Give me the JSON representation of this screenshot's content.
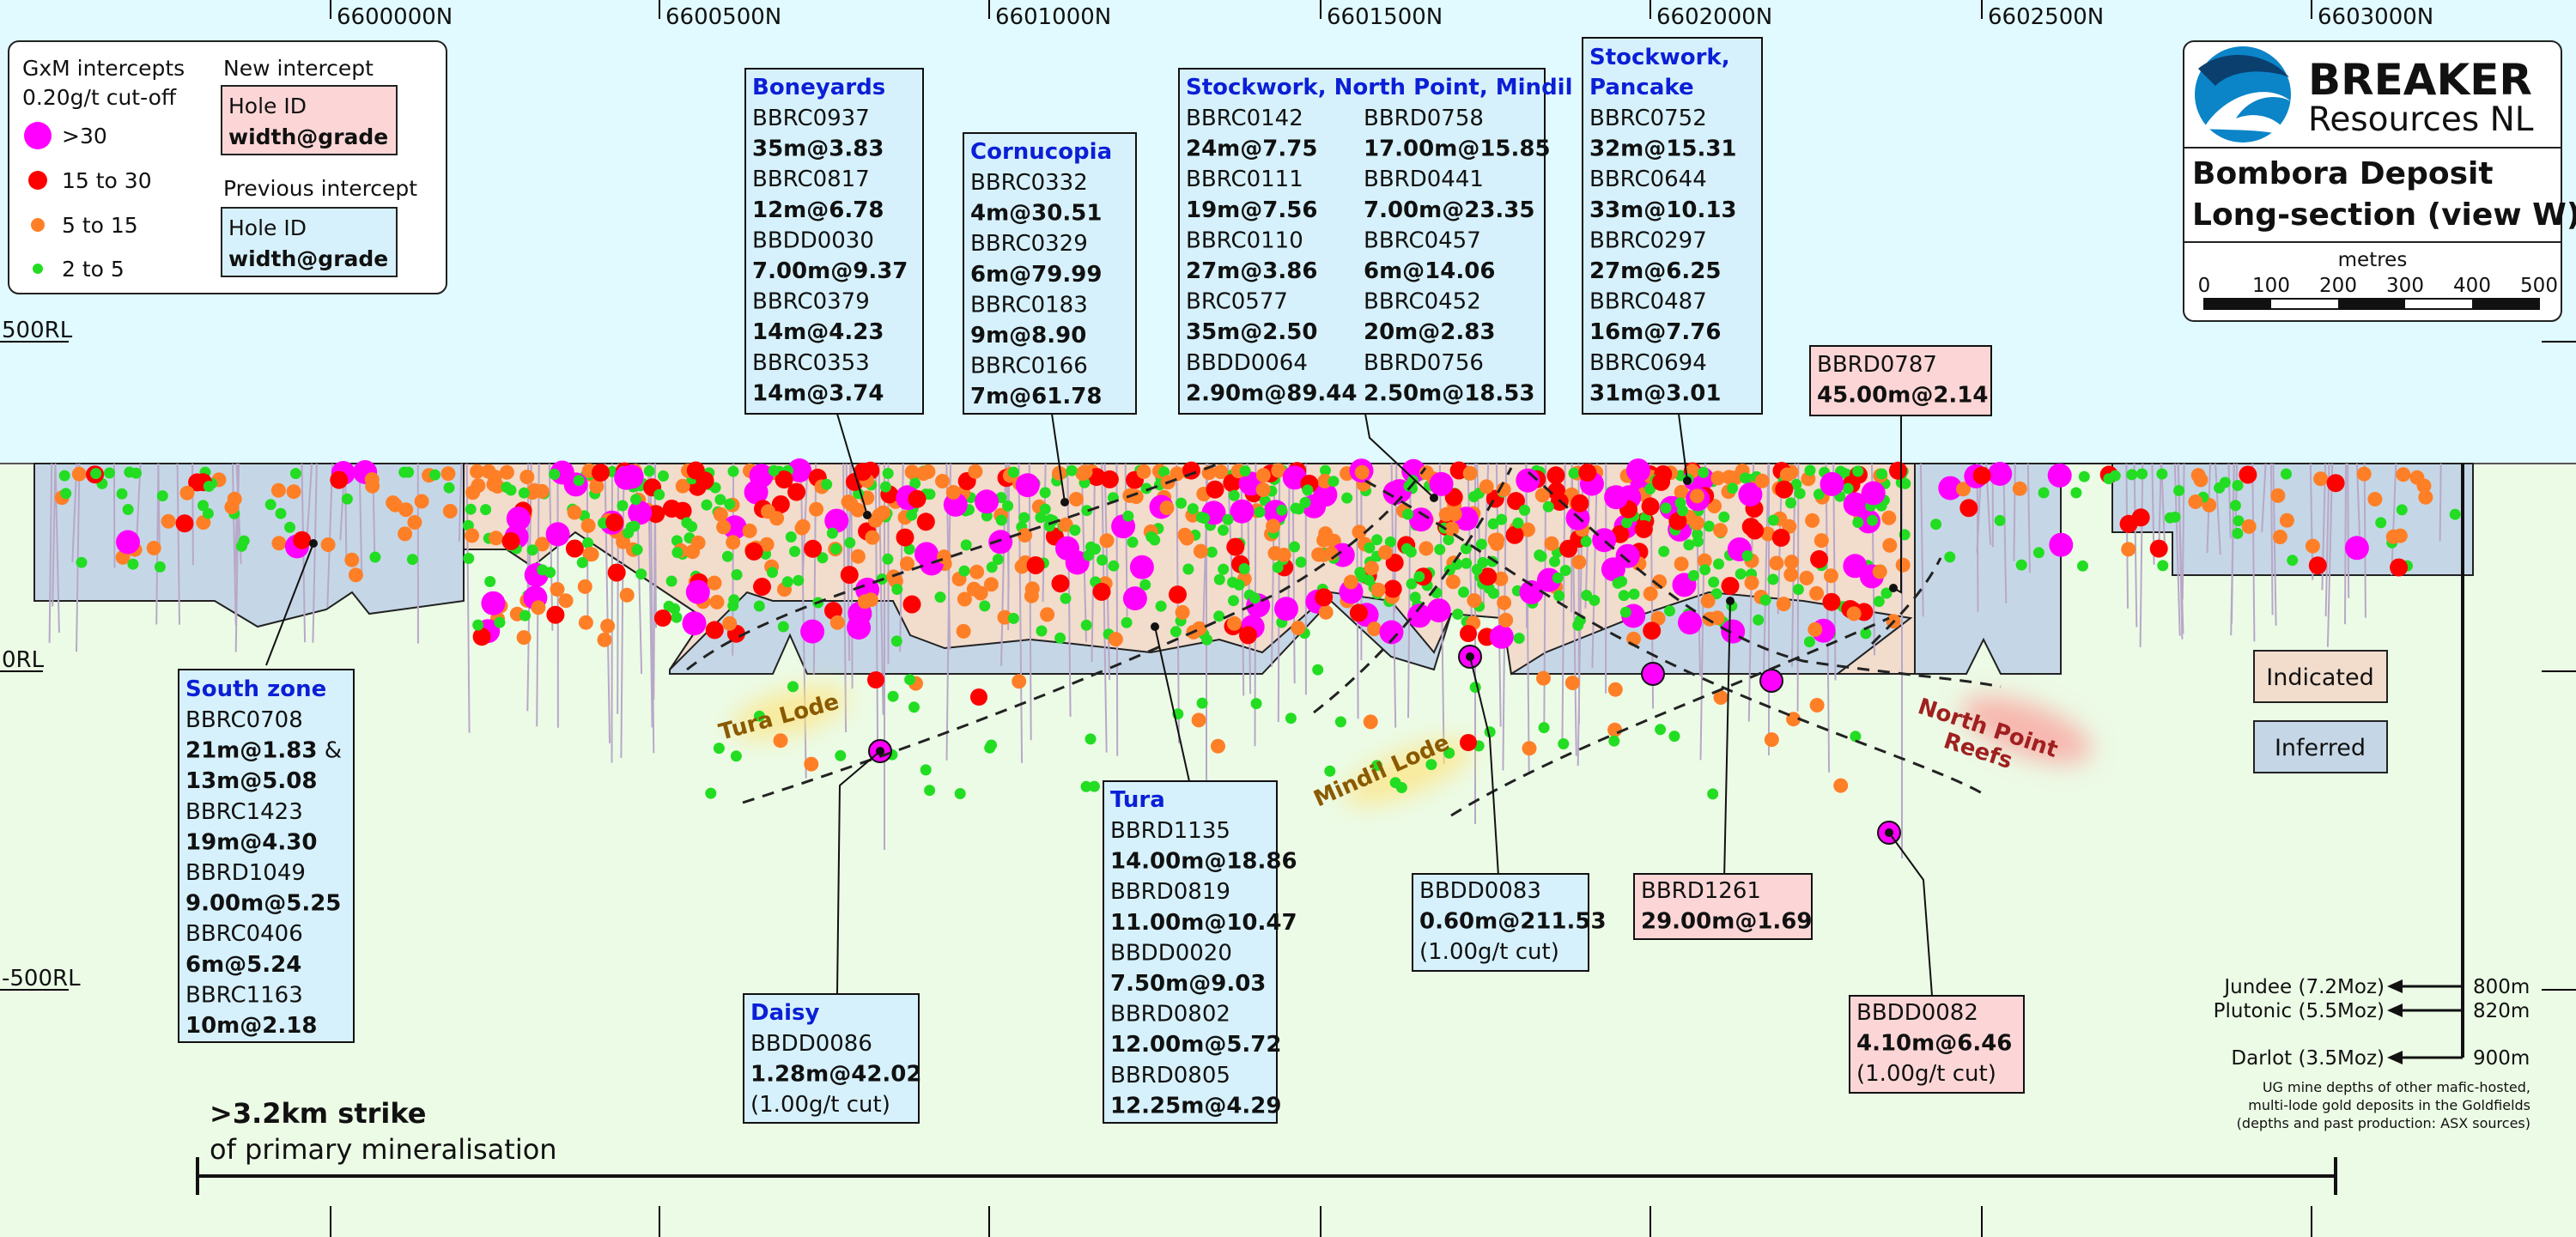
{
  "northings": [
    "6600000N",
    "6600500N",
    "6601000N",
    "6601500N",
    "6602000N",
    "6602500N",
    "6603000N"
  ],
  "rl_labels": [
    "500RL",
    "0RL",
    "-500RL"
  ],
  "legend": {
    "title1": "GxM intercepts",
    "title2": "0.20g/t cut-off",
    "bins": [
      {
        "label": ">30",
        "color": "#ff00ff"
      },
      {
        "label": "15 to 30",
        "color": "#ff0000"
      },
      {
        "label": "5 to 15",
        "color": "#ff7f27"
      },
      {
        "label": "2 to 5",
        "color": "#22dd22"
      }
    ],
    "new_title": "New intercept",
    "new_line1": "Hole ID",
    "new_line2": "width@grade",
    "prev_title": "Previous intercept",
    "prev_line1": "Hole ID",
    "prev_line2": "width@grade"
  },
  "logo": {
    "line1": "BREAKER",
    "line2": "Resources NL",
    "title1": "Bombora Deposit",
    "title2": "Long-section (view W)",
    "scale_unit": "metres",
    "scale_ticks": [
      "0",
      "100",
      "200",
      "300",
      "400",
      "500"
    ]
  },
  "categories": {
    "indicated": "Indicated",
    "inferred": "Inferred"
  },
  "lodes": {
    "tura": "Tura Lode",
    "mindil": "Mindil Lode",
    "npr1": "North Point",
    "npr2": "Reefs"
  },
  "callouts": {
    "boneyards": {
      "title": "Boneyards",
      "rows": [
        {
          "t": "BBRC0937",
          "b": false
        },
        {
          "t": "35m@3.83",
          "b": true
        },
        {
          "t": "BBRC0817",
          "b": false
        },
        {
          "t": "12m@6.78",
          "b": true
        },
        {
          "t": "BBDD0030",
          "b": false
        },
        {
          "t": "7.00m@9.37",
          "b": true
        },
        {
          "t": "BBRC0379",
          "b": false
        },
        {
          "t": "14m@4.23",
          "b": true
        },
        {
          "t": "BBRC0353",
          "b": false
        },
        {
          "t": "14m@3.74",
          "b": true
        }
      ]
    },
    "cornucopia": {
      "title": "Cornucopia",
      "rows": [
        {
          "t": "BBRC0332",
          "b": false
        },
        {
          "t": "4m@30.51",
          "b": true
        },
        {
          "t": "BBRC0329",
          "b": false
        },
        {
          "t": "6m@79.99",
          "b": true
        },
        {
          "t": "BBRC0183",
          "b": false
        },
        {
          "t": "9m@8.90",
          "b": true
        },
        {
          "t": "BBRC0166",
          "b": false
        },
        {
          "t": "7m@61.78",
          "b": true
        }
      ]
    },
    "stockwork_np": {
      "title": "Stockwork, North Point, Mindil",
      "col1": [
        {
          "t": "BBRC0142",
          "b": false
        },
        {
          "t": "24m@7.75",
          "b": true
        },
        {
          "t": "BBRC0111",
          "b": false
        },
        {
          "t": "19m@7.56",
          "b": true
        },
        {
          "t": "BBRC0110",
          "b": false
        },
        {
          "t": "27m@3.86",
          "b": true
        },
        {
          "t": "BRC0577",
          "b": false
        },
        {
          "t": "35m@2.50",
          "b": true
        },
        {
          "t": "BBDD0064",
          "b": false
        },
        {
          "t": "2.90m@89.44",
          "b": true
        }
      ],
      "col2": [
        {
          "t": "BBRD0758",
          "b": false
        },
        {
          "t": "17.00m@15.85",
          "b": true
        },
        {
          "t": "BBRD0441",
          "b": false
        },
        {
          "t": "7.00m@23.35",
          "b": true
        },
        {
          "t": "BBRC0457",
          "b": false
        },
        {
          "t": "6m@14.06",
          "b": true
        },
        {
          "t": "BBRC0452",
          "b": false
        },
        {
          "t": "20m@2.83",
          "b": true
        },
        {
          "t": "BBRD0756",
          "b": false
        },
        {
          "t": "2.50m@18.53",
          "b": true
        }
      ]
    },
    "stockwork_pancake": {
      "title1": "Stockwork,",
      "title2": "Pancake",
      "rows": [
        {
          "t": "BBRC0752",
          "b": false
        },
        {
          "t": "32m@15.31",
          "b": true
        },
        {
          "t": "BBRC0644",
          "b": false
        },
        {
          "t": "33m@10.13",
          "b": true
        },
        {
          "t": "BBRC0297",
          "b": false
        },
        {
          "t": "27m@6.25",
          "b": true
        },
        {
          "t": "BBRC0487",
          "b": false
        },
        {
          "t": "16m@7.76",
          "b": true
        },
        {
          "t": "BBRC0694",
          "b": false
        },
        {
          "t": "31m@3.01",
          "b": true
        }
      ]
    },
    "bbrd0787": {
      "rows": [
        {
          "t": "BBRD0787",
          "b": false
        },
        {
          "t": "45.00m@2.14",
          "b": true
        }
      ]
    },
    "south_zone": {
      "title": "South zone",
      "rows": [
        {
          "t": "BBRC0708",
          "b": false
        },
        {
          "t": "21m@1.83",
          "b": true,
          "suffix": " &"
        },
        {
          "t": "13m@5.08",
          "b": true
        },
        {
          "t": "BBRC1423",
          "b": false
        },
        {
          "t": "19m@4.30",
          "b": true
        },
        {
          "t": "BBRD1049",
          "b": false
        },
        {
          "t": "9.00m@5.25",
          "b": true
        },
        {
          "t": "BBRC0406",
          "b": false
        },
        {
          "t": "6m@5.24",
          "b": true
        },
        {
          "t": "BBRC1163",
          "b": false
        },
        {
          "t": "10m@2.18",
          "b": true
        }
      ]
    },
    "tura": {
      "title": "Tura",
      "rows": [
        {
          "t": "BBRD1135",
          "b": false
        },
        {
          "t": "14.00m@18.86",
          "b": true
        },
        {
          "t": "BBRD0819",
          "b": false
        },
        {
          "t": "11.00m@10.47",
          "b": true
        },
        {
          "t": "BBDD0020",
          "b": false
        },
        {
          "t": "7.50m@9.03",
          "b": true
        },
        {
          "t": "BBRD0802",
          "b": false
        },
        {
          "t": "12.00m@5.72",
          "b": true
        },
        {
          "t": "BBRD0805",
          "b": false
        },
        {
          "t": "12.25m@4.29",
          "b": true
        }
      ]
    },
    "daisy": {
      "title": "Daisy",
      "rows": [
        {
          "t": "BBDD0086",
          "b": false
        },
        {
          "t": "1.28m@42.02",
          "b": true
        },
        {
          "t": "(1.00g/t cut)",
          "b": false
        }
      ]
    },
    "bbdd0083": {
      "rows": [
        {
          "t": "BBDD0083",
          "b": false
        },
        {
          "t": "0.60m@211.53",
          "b": true
        },
        {
          "t": "(1.00g/t cut)",
          "b": false
        }
      ]
    },
    "bbrd1261": {
      "rows": [
        {
          "t": "BBRD1261",
          "b": false
        },
        {
          "t": "29.00m@1.69",
          "b": true
        }
      ]
    },
    "bbdd0082": {
      "rows": [
        {
          "t": "BBDD0082",
          "b": false
        },
        {
          "t": "4.10m@6.46",
          "b": true
        },
        {
          "t": "(1.00g/t cut)",
          "b": false
        }
      ]
    }
  },
  "depths": {
    "items": [
      {
        "name": "Jundee (7.2Moz)",
        "depth": "800m"
      },
      {
        "name": "Plutonic (5.5Moz)",
        "depth": "820m"
      },
      {
        "name": "Darlot (3.5Moz)",
        "depth": "900m"
      }
    ],
    "note1": "UG mine depths of other mafic-hosted,",
    "note2": "multi-lode gold deposits in the Goldfields",
    "note3": "(depths and past production: ASX sources)"
  },
  "strike": {
    "bold": ">3.2km strike",
    "normal": "of primary mineralisation"
  },
  "colors": {
    "sky": "#e0faff",
    "ground": "#ecfbe6",
    "inferred": "#c5d7e6",
    "indicated": "#f2dccc",
    "callout_bg": "#d6f1fb",
    "new_bg": "#fcd6d6",
    "title_blue": "#0b1fd6"
  }
}
